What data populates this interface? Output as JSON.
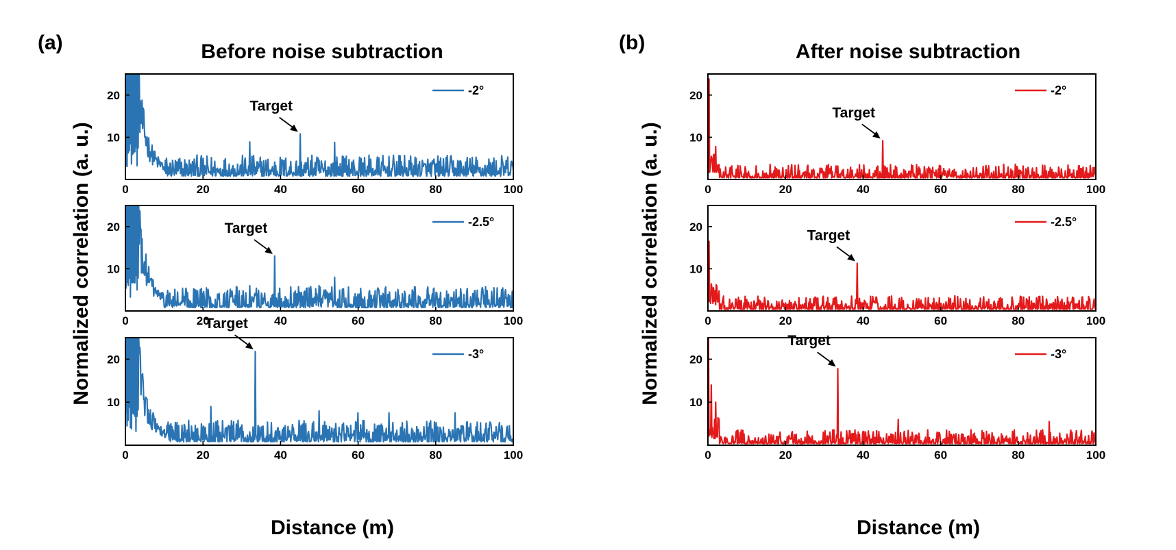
{
  "labels": {
    "y_axis": "Normalized correlation (a. u.)",
    "x_axis": "Distance (m)"
  },
  "panels": [
    {
      "letter": "(a)",
      "title": "Before noise subtraction"
    },
    {
      "letter": "(b)",
      "title": "After noise subtraction"
    }
  ],
  "colors": {
    "before": "#2b74b3",
    "after": "#e31a1c",
    "axes": "#000000"
  },
  "chart_data": [
    {
      "type": "line",
      "panel": "a",
      "title": "Before noise subtraction",
      "series": [
        {
          "name": "-2°",
          "color": "#2b74b3"
        }
      ],
      "xlim": [
        0,
        100
      ],
      "ylim": [
        0,
        25
      ],
      "xticks": [
        0,
        20,
        40,
        60,
        80,
        100
      ],
      "yticks": [
        10,
        20
      ],
      "xlabel": "Distance (m)",
      "ylabel": "Normalized correlation (a. u.)",
      "noise_profile": "before",
      "target_x": 45,
      "target_y": 10.8,
      "peaks": [
        [
          32,
          8.9
        ],
        [
          54,
          8.8
        ],
        [
          57,
          5.5
        ],
        [
          20,
          5
        ]
      ],
      "annotation": {
        "text": "Target",
        "x": 45,
        "y": 10.8
      }
    },
    {
      "type": "line",
      "panel": "a",
      "title": "Before noise subtraction",
      "series": [
        {
          "name": "-2.5°",
          "color": "#2b74b3"
        }
      ],
      "xlim": [
        0,
        100
      ],
      "ylim": [
        0,
        25
      ],
      "xticks": [
        0,
        20,
        40,
        60,
        80,
        100
      ],
      "yticks": [
        10,
        20
      ],
      "xlabel": "Distance (m)",
      "ylabel": "Normalized correlation (a. u.)",
      "noise_profile": "before",
      "target_x": 38.5,
      "target_y": 13,
      "peaks": [
        [
          32,
          6
        ],
        [
          50,
          6
        ],
        [
          54,
          8
        ],
        [
          95,
          5.5
        ]
      ],
      "annotation": {
        "text": "Target",
        "x": 38.5,
        "y": 13
      }
    },
    {
      "type": "line",
      "panel": "a",
      "title": "Before noise subtraction",
      "series": [
        {
          "name": "-3°",
          "color": "#2b74b3"
        }
      ],
      "xlim": [
        0,
        100
      ],
      "ylim": [
        0,
        25
      ],
      "xticks": [
        0,
        20,
        40,
        60,
        80,
        100
      ],
      "yticks": [
        10,
        20
      ],
      "xlabel": "Distance (m)",
      "ylabel": "Normalized correlation (a. u.)",
      "noise_profile": "before",
      "target_x": 33.5,
      "target_y": 21.8,
      "peaks": [
        [
          22,
          9
        ],
        [
          50,
          8
        ],
        [
          60,
          7.5
        ],
        [
          68,
          7.5
        ],
        [
          85,
          7.5
        ]
      ],
      "annotation": {
        "text": "Target",
        "x": 33.5,
        "y": 21.8
      }
    },
    {
      "type": "line",
      "panel": "b",
      "title": "After noise subtraction",
      "series": [
        {
          "name": "-2°",
          "color": "#e31a1c"
        }
      ],
      "xlim": [
        0,
        100
      ],
      "ylim": [
        0,
        25
      ],
      "xticks": [
        0,
        20,
        40,
        60,
        80,
        100
      ],
      "yticks": [
        10,
        20
      ],
      "xlabel": "Distance (m)",
      "ylabel": "Normalized correlation (a. u.)",
      "noise_profile": "after",
      "target_x": 45,
      "target_y": 9.2,
      "peaks": [
        [
          0.3,
          23.8
        ],
        [
          2,
          7.8
        ],
        [
          33,
          3.2
        ],
        [
          60,
          3.2
        ]
      ],
      "annotation": {
        "text": "Target",
        "x": 45,
        "y": 9.2
      }
    },
    {
      "type": "line",
      "panel": "b",
      "title": "After noise subtraction",
      "series": [
        {
          "name": "-2.5°",
          "color": "#e31a1c"
        }
      ],
      "xlim": [
        0,
        100
      ],
      "ylim": [
        0,
        25
      ],
      "xticks": [
        0,
        20,
        40,
        60,
        80,
        100
      ],
      "yticks": [
        10,
        20
      ],
      "xlabel": "Distance (m)",
      "ylabel": "Normalized correlation (a. u.)",
      "noise_profile": "after",
      "target_x": 38.5,
      "target_y": 11.3,
      "peaks": [
        [
          0.3,
          16.5
        ],
        [
          1.5,
          5.5
        ],
        [
          37,
          3.5
        ],
        [
          50,
          3.2
        ]
      ],
      "annotation": {
        "text": "Target",
        "x": 38.5,
        "y": 11.3
      }
    },
    {
      "type": "line",
      "panel": "b",
      "title": "After noise subtraction",
      "series": [
        {
          "name": "-3°",
          "color": "#e31a1c"
        }
      ],
      "xlim": [
        0,
        100
      ],
      "ylim": [
        0,
        25
      ],
      "xticks": [
        0,
        20,
        40,
        60,
        80,
        100
      ],
      "yticks": [
        10,
        20
      ],
      "xlabel": "Distance (m)",
      "ylabel": "Normalized correlation (a. u.)",
      "noise_profile": "after",
      "target_x": 33.5,
      "target_y": 17.8,
      "peaks": [
        [
          0.2,
          25
        ],
        [
          0.8,
          14
        ],
        [
          2,
          10
        ],
        [
          49,
          6
        ],
        [
          88,
          5.5
        ]
      ],
      "annotation": {
        "text": "Target",
        "x": 33.5,
        "y": 17.8
      }
    }
  ]
}
